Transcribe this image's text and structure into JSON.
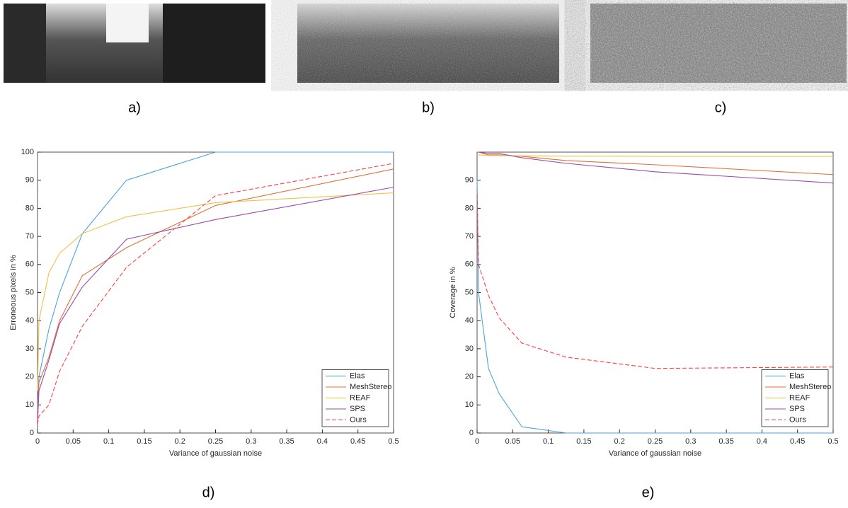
{
  "image_captions": [
    "a)",
    "b)",
    "c)"
  ],
  "chart_data": [
    {
      "type": "line",
      "caption": "d)",
      "xlabel": "Variance of gaussian noise",
      "ylabel": "Erroneous pixels in %",
      "x": [
        0,
        0.002,
        0.016,
        0.031,
        0.063,
        0.125,
        0.25,
        0.5
      ],
      "xlim": [
        0,
        0.5
      ],
      "xticks": [
        0,
        0.05,
        0.1,
        0.15,
        0.2,
        0.25,
        0.3,
        0.35,
        0.4,
        0.45,
        0.5
      ],
      "ylim": [
        0,
        100
      ],
      "yticks": [
        0,
        10,
        20,
        30,
        40,
        50,
        60,
        70,
        80,
        90,
        100
      ],
      "legend": "lower right",
      "series": [
        {
          "name": "Elas",
          "color": "#4ba3dc",
          "dashed": false,
          "values": [
            8,
            20,
            37,
            50,
            71,
            90,
            100,
            100
          ]
        },
        {
          "name": "MeshStereo",
          "color": "#e0703a",
          "dashed": false,
          "values": [
            5,
            18,
            27,
            40,
            56,
            66,
            81,
            94
          ]
        },
        {
          "name": "REAF",
          "color": "#f2c04a",
          "dashed": false,
          "values": [
            15,
            40,
            57,
            64,
            71,
            77,
            82,
            85.5
          ]
        },
        {
          "name": "SPS",
          "color": "#9b4bab",
          "dashed": false,
          "values": [
            3,
            15,
            26,
            39,
            52,
            69,
            76,
            87.5
          ]
        },
        {
          "name": "Ours",
          "color": "#ff4040",
          "dashed": true,
          "values": [
            3,
            6,
            10,
            22,
            38,
            59,
            84.5,
            96
          ]
        }
      ]
    },
    {
      "type": "line",
      "caption": "e)",
      "xlabel": "Variance of gaussian noise",
      "ylabel": "Coverage in %",
      "x": [
        0,
        0.002,
        0.016,
        0.031,
        0.063,
        0.125,
        0.25,
        0.5
      ],
      "xlim": [
        0,
        0.5
      ],
      "xticks": [
        0,
        0.05,
        0.1,
        0.15,
        0.2,
        0.25,
        0.3,
        0.35,
        0.4,
        0.45,
        0.5
      ],
      "ylim": [
        0,
        100
      ],
      "yticks": [
        0,
        10,
        20,
        30,
        40,
        50,
        60,
        70,
        80,
        90
      ],
      "legend": "lower right",
      "series": [
        {
          "name": "Elas",
          "color": "#4ba3dc",
          "dashed": false,
          "values": [
            90,
            50,
            23,
            14,
            2.2,
            0,
            0,
            0
          ]
        },
        {
          "name": "MeshStereo",
          "color": "#e0703a",
          "dashed": false,
          "values": [
            100,
            100,
            99,
            99,
            98.5,
            97,
            95.5,
            92
          ]
        },
        {
          "name": "REAF",
          "color": "#f2c04a",
          "dashed": false,
          "values": [
            99,
            99,
            98.8,
            98.8,
            98.7,
            98.6,
            98.5,
            98.5
          ]
        },
        {
          "name": "SPS",
          "color": "#9b4bab",
          "dashed": false,
          "values": [
            100,
            100,
            99.5,
            99.5,
            98,
            96,
            93,
            89
          ]
        },
        {
          "name": "Ours",
          "color": "#ff4040",
          "dashed": true,
          "values": [
            85,
            60,
            49,
            41,
            32,
            27,
            23,
            23.5
          ]
        }
      ]
    }
  ]
}
